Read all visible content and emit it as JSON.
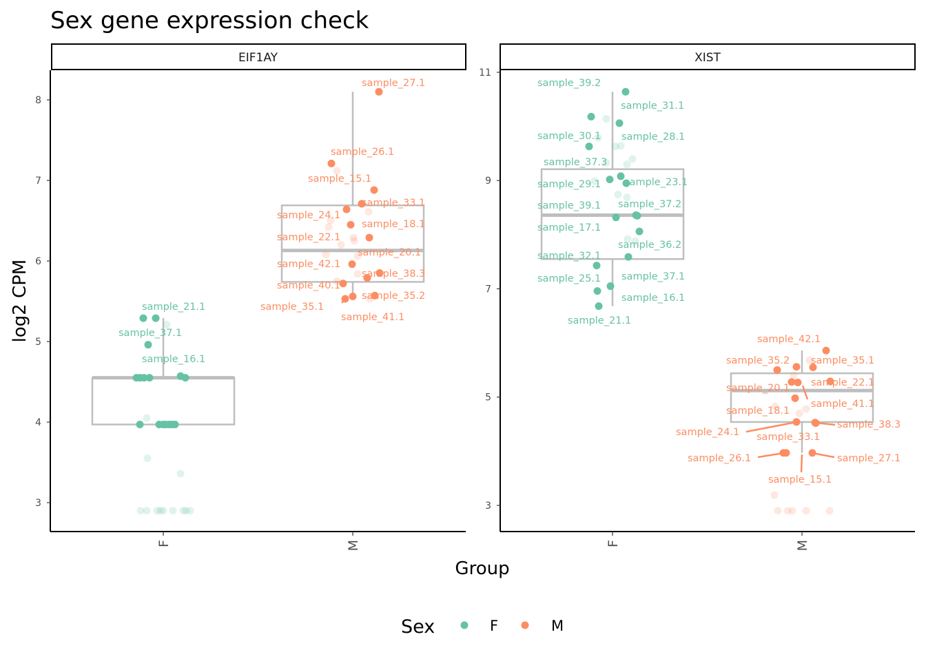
{
  "chart_data": {
    "type": "box+scatter",
    "title": "Sex gene expression check",
    "xlabel": "Group",
    "ylabel": "log2 CPM",
    "legend": {
      "title": "Sex",
      "entries": [
        "F",
        "M"
      ],
      "placement": "bottom"
    },
    "colors": {
      "F": "#66C2A5",
      "M": "#FC8D62",
      "box": "#BEBEBE"
    },
    "categories": [
      "F",
      "M"
    ],
    "panels": [
      {
        "name": "EIF1AY",
        "ylim": [
          2.7,
          8.4
        ],
        "yticks": [
          3,
          4,
          5,
          6,
          7,
          8
        ],
        "groups": {
          "F": {
            "box": {
              "lower": 3.97,
              "q1": 3.97,
              "median": 4.55,
              "q3": 4.55,
              "upper": 5.29
            },
            "labelled": [
              {
                "label": "sample_21.1",
                "value": 5.29
              },
              {
                "label": "sample_37.1",
                "value": 4.96
              },
              {
                "label": "sample_16.1",
                "value": 4.57
              }
            ],
            "highlighted": [
              5.29,
              4.55,
              4.55,
              4.55,
              4.55,
              4.55,
              3.97,
              3.97,
              3.97,
              3.97,
              3.97,
              3.97,
              3.97
            ],
            "faded": [
              5.21,
              4.05,
              3.55,
              3.36,
              2.9,
              2.9,
              2.9,
              2.9,
              2.9,
              2.9,
              2.9,
              2.9,
              2.9
            ]
          },
          "M": {
            "box": {
              "lower": 5.55,
              "q1": 5.74,
              "median": 6.13,
              "q3": 6.69,
              "upper": 8.1
            },
            "labelled": [
              {
                "label": "sample_27.1",
                "value": 8.1
              },
              {
                "label": "sample_26.1",
                "value": 7.21
              },
              {
                "label": "sample_15.1",
                "value": 6.88
              },
              {
                "label": "sample_33.1",
                "value": 6.71
              },
              {
                "label": "sample_24.1",
                "value": 6.64
              },
              {
                "label": "sample_18.1",
                "value": 6.45
              },
              {
                "label": "sample_22.1",
                "value": 6.29
              },
              {
                "label": "sample_42.1",
                "value": 5.96
              },
              {
                "label": "sample_38.3",
                "value": 5.85
              },
              {
                "label": "sample_20.1",
                "value": 5.79
              },
              {
                "label": "sample_40.1",
                "value": 5.72
              },
              {
                "label": "sample_35.2",
                "value": 5.57
              },
              {
                "label": "sample_41.1",
                "value": 5.56
              },
              {
                "label": "sample_35.1",
                "value": 5.53
              }
            ],
            "highlighted": [],
            "faded": [
              7.12,
              6.61,
              6.5,
              6.42,
              6.29,
              6.25,
              6.2,
              6.08,
              6.06,
              5.75,
              5.84,
              5.53
            ]
          }
        }
      },
      {
        "name": "XIST",
        "ylim": [
          2.5,
          11.0
        ],
        "yticks": [
          3,
          5,
          7,
          9,
          11
        ],
        "groups": {
          "F": {
            "box": {
              "lower": 6.68,
              "q1": 7.55,
              "median": 8.36,
              "q3": 9.21,
              "upper": 10.64
            },
            "labelled": [
              {
                "label": "sample_39.2",
                "value": 10.64
              },
              {
                "label": "sample_30.1",
                "value": 10.18
              },
              {
                "label": "sample_31.1",
                "value": 10.06
              },
              {
                "label": "sample_28.1",
                "value": 9.63
              },
              {
                "label": "sample_37.3",
                "value": 9.08
              },
              {
                "label": "sample_29.1",
                "value": 9.02
              },
              {
                "label": "sample_23.1",
                "value": 8.95
              },
              {
                "label": "sample_37.2",
                "value": 8.36
              },
              {
                "label": "sample_39.1",
                "value": 8.35
              },
              {
                "label": "sample_17.1",
                "value": 8.32
              },
              {
                "label": "sample_36.2",
                "value": 8.06
              },
              {
                "label": "sample_37.1",
                "value": 7.59
              },
              {
                "label": "sample_32.1",
                "value": 7.43
              },
              {
                "label": "sample_25.1",
                "value": 7.05
              },
              {
                "label": "sample_16.1",
                "value": 6.96
              },
              {
                "label": "sample_21.1",
                "value": 6.68
              }
            ],
            "highlighted": [],
            "faded": [
              10.14,
              9.79,
              9.63,
              9.64,
              9.33,
              9.3,
              9.4,
              8.99,
              8.74,
              8.69,
              7.92,
              7.88
            ]
          },
          "M": {
            "box": {
              "lower": 3.97,
              "q1": 4.54,
              "median": 5.12,
              "q3": 5.44,
              "upper": 5.86
            },
            "labelled": [
              {
                "label": "sample_42.1",
                "value": 5.86
              },
              {
                "label": "sample_35.2",
                "value": 5.5
              },
              {
                "label": "sample_35.1",
                "value": 5.55
              },
              {
                "label": "sample_22.1",
                "value": 5.29
              },
              {
                "label": "sample_20.1",
                "value": 5.28
              },
              {
                "label": "sample_41.1",
                "value": 5.27
              },
              {
                "label": "sample_18.1",
                "value": 4.98
              },
              {
                "label": "sample_24.1",
                "value": 4.54
              },
              {
                "label": "sample_38.3",
                "value": 4.52
              },
              {
                "label": "sample_33.1",
                "value": 4.53
              },
              {
                "label": "sample_26.1",
                "value": 3.97
              },
              {
                "label": "sample_27.1",
                "value": 3.97
              },
              {
                "label": "sample_15.1",
                "value": 3.97
              }
            ],
            "highlighted": [
              5.56
            ],
            "faded": [
              5.68,
              5.4,
              4.83,
              4.78,
              4.7,
              3.19,
              2.9,
              2.9,
              2.9,
              2.9,
              2.9
            ]
          }
        }
      }
    ]
  }
}
